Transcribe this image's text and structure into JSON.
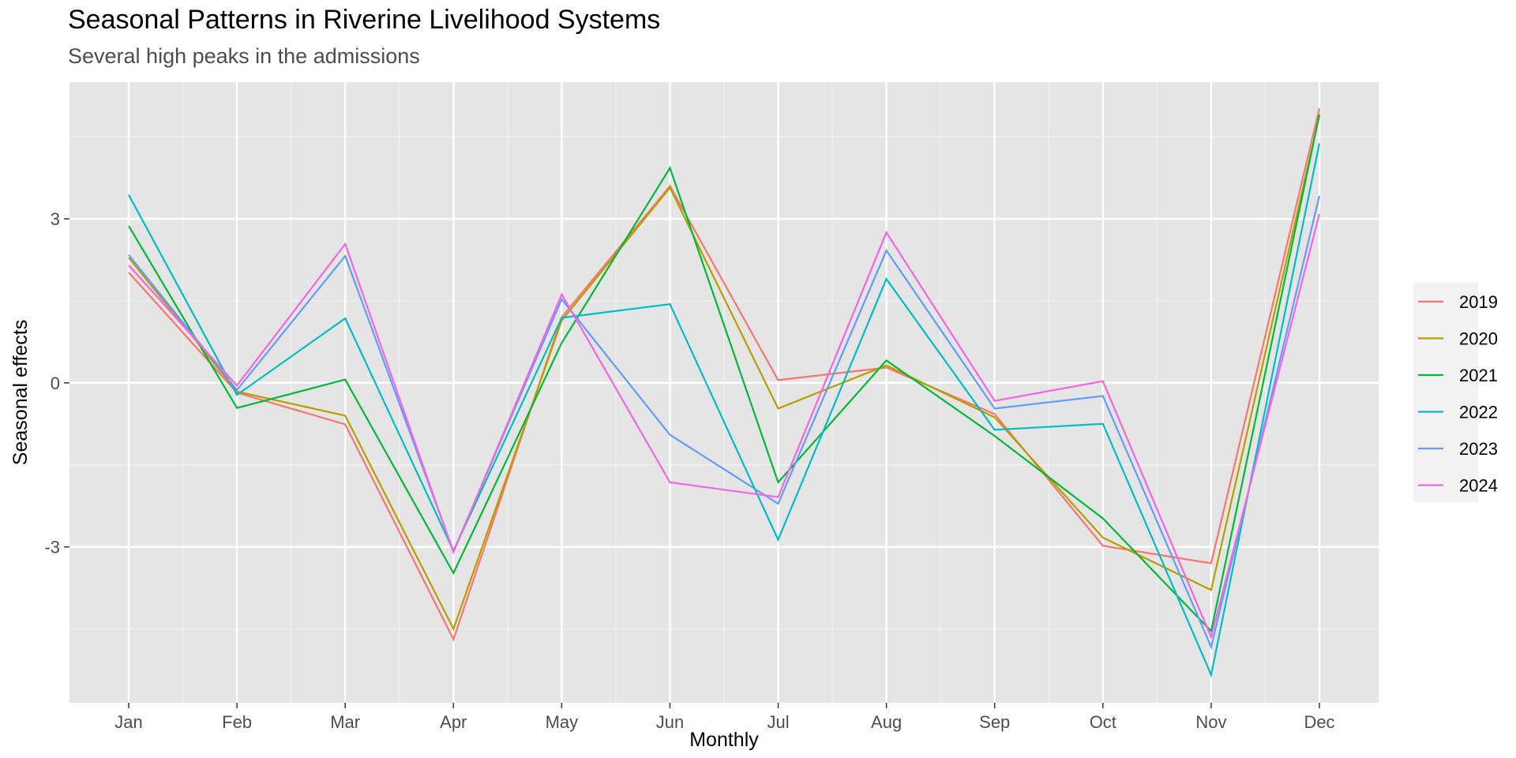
{
  "chart_data": {
    "type": "line",
    "title": "Seasonal Patterns in Riverine Livelihood Systems",
    "subtitle": "Several high peaks in the admissions",
    "xlabel": "Monthly",
    "ylabel": "Seasonal effects",
    "categories": [
      "Jan",
      "Feb",
      "Mar",
      "Apr",
      "May",
      "Jun",
      "Jul",
      "Aug",
      "Sep",
      "Oct",
      "Nov",
      "Dec"
    ],
    "yticks": [
      -3,
      0,
      3
    ],
    "ylim": [
      -5.85,
      5.5
    ],
    "grid": true,
    "legend_position": "right",
    "series": [
      {
        "name": "2019",
        "color": "#F8766D",
        "values": [
          2.02,
          -0.18,
          -0.76,
          -4.69,
          1.2,
          3.6,
          0.05,
          0.28,
          -0.57,
          -2.98,
          -3.3,
          5.02
        ]
      },
      {
        "name": "2020",
        "color": "#B79F00",
        "values": [
          2.29,
          -0.16,
          -0.6,
          -4.5,
          1.14,
          3.57,
          -0.47,
          0.32,
          -0.63,
          -2.83,
          -3.79,
          4.88
        ]
      },
      {
        "name": "2021",
        "color": "#00BA38",
        "values": [
          2.87,
          -0.46,
          0.06,
          -3.48,
          0.73,
          3.93,
          -1.82,
          0.41,
          -0.97,
          -2.48,
          -4.54,
          4.91
        ]
      },
      {
        "name": "2022",
        "color": "#00BFC4",
        "values": [
          3.44,
          -0.22,
          1.18,
          -3.07,
          1.19,
          1.44,
          -2.87,
          1.9,
          -0.86,
          -0.75,
          -5.34,
          4.38
        ]
      },
      {
        "name": "2023",
        "color": "#619CFF",
        "values": [
          2.34,
          -0.13,
          2.32,
          -3.08,
          1.53,
          -0.95,
          -2.21,
          2.42,
          -0.47,
          -0.24,
          -4.83,
          3.42
        ]
      },
      {
        "name": "2024",
        "color": "#F564E3",
        "values": [
          2.15,
          -0.05,
          2.54,
          -3.1,
          1.62,
          -1.82,
          -2.09,
          2.75,
          -0.33,
          0.03,
          -4.65,
          3.09
        ]
      }
    ]
  }
}
